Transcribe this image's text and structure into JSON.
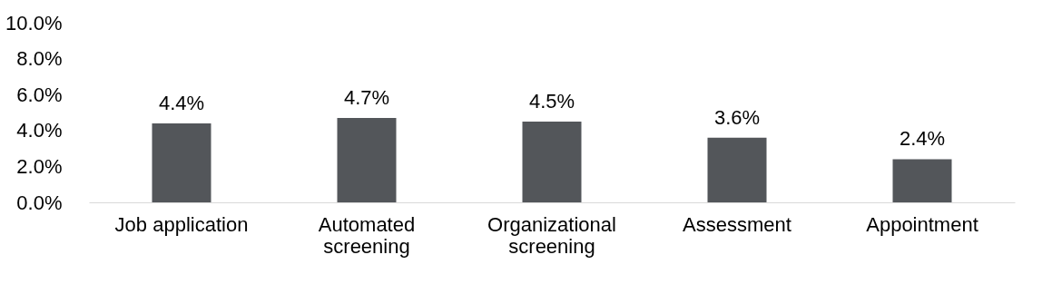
{
  "chart_data": {
    "type": "bar",
    "categories": [
      "Job application",
      "Automated screening",
      "Organizational screening",
      "Assessment",
      "Appointment"
    ],
    "values": [
      4.4,
      4.7,
      4.5,
      3.6,
      2.4
    ],
    "value_labels": [
      "4.4%",
      "4.7%",
      "4.5%",
      "3.6%",
      "2.4%"
    ],
    "color": "#53565a",
    "ylim": [
      0,
      10
    ],
    "yticks": [
      {
        "value": 0,
        "label": "0.0%"
      },
      {
        "value": 2,
        "label": "2.0%"
      },
      {
        "value": 4,
        "label": "4.0%"
      },
      {
        "value": 6,
        "label": "6.0%"
      },
      {
        "value": 8,
        "label": "8.0%"
      },
      {
        "value": 10,
        "label": "10.0%"
      }
    ],
    "grid": false
  }
}
